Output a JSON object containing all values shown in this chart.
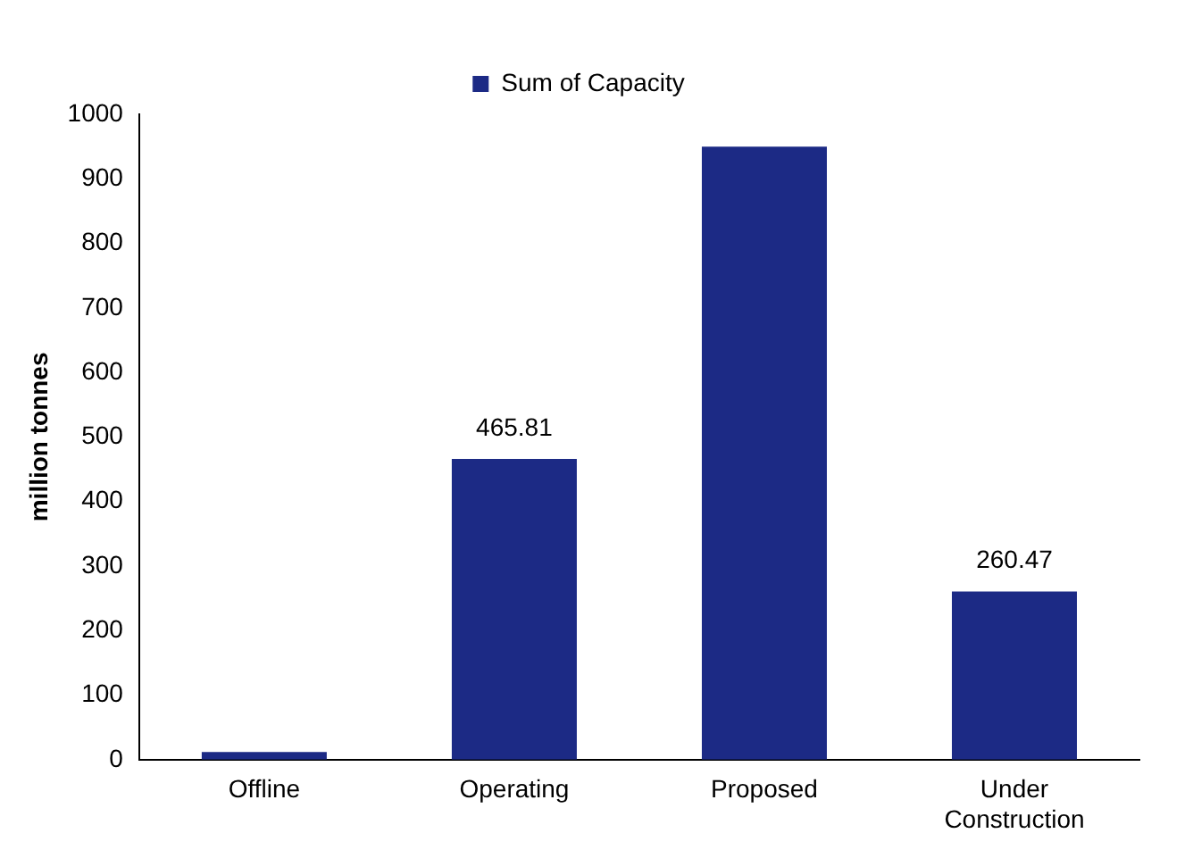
{
  "chart_data": {
    "type": "bar",
    "ylabel": "million tonnes",
    "categories": [
      "Offline",
      "Operating",
      "Proposed",
      "Under Construction"
    ],
    "series": [
      {
        "name": "Sum of Capacity",
        "color": "#1c2a85",
        "values": [
          12,
          465.81,
          950,
          260.47
        ],
        "value_labels": [
          null,
          "465.81",
          null,
          "260.47"
        ]
      }
    ],
    "ylim": [
      0,
      1000
    ],
    "yticks": [
      0,
      100,
      200,
      300,
      400,
      500,
      600,
      700,
      800,
      900,
      1000
    ],
    "grid": false,
    "legend": "top"
  }
}
